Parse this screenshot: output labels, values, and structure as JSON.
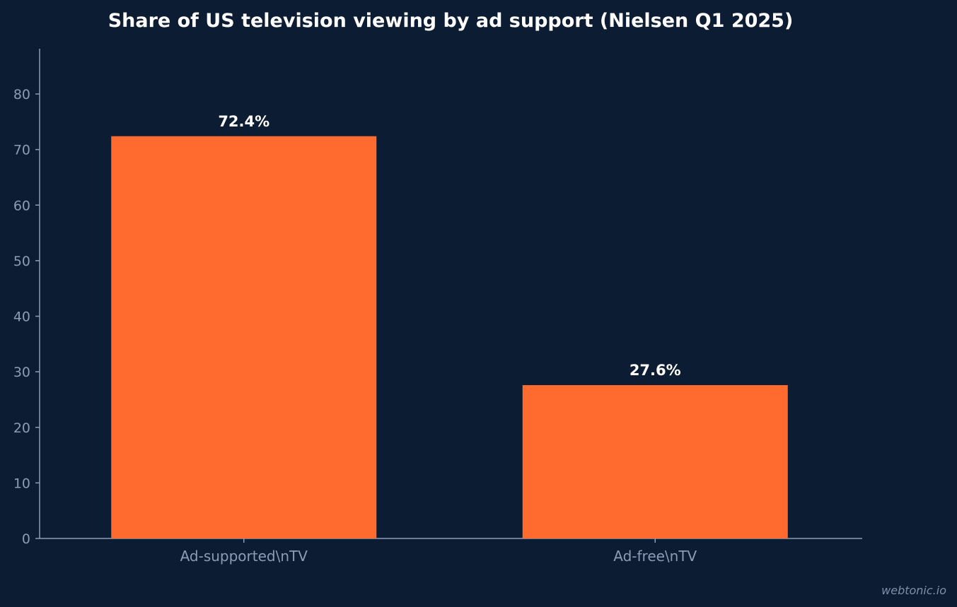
{
  "watermark": "webtonic.io",
  "colors": {
    "background": "#0c1c33",
    "bar": "#ff6b2f",
    "axis": "#8c9cb5",
    "value_label": "#ffffff"
  },
  "chart_data": {
    "type": "bar",
    "title": "Share of US television viewing by ad support (Nielsen Q1 2025)",
    "xlabel": "",
    "ylabel": "",
    "categories": [
      "Ad-supported\\nTV",
      "Ad-free\\nTV"
    ],
    "values": [
      72.4,
      27.6
    ],
    "value_labels": [
      "72.4%",
      "27.6%"
    ],
    "ylim": [
      0,
      88
    ],
    "yticks": [
      0,
      10,
      20,
      30,
      40,
      50,
      60,
      70,
      80
    ],
    "grid": false,
    "legend": "none"
  }
}
